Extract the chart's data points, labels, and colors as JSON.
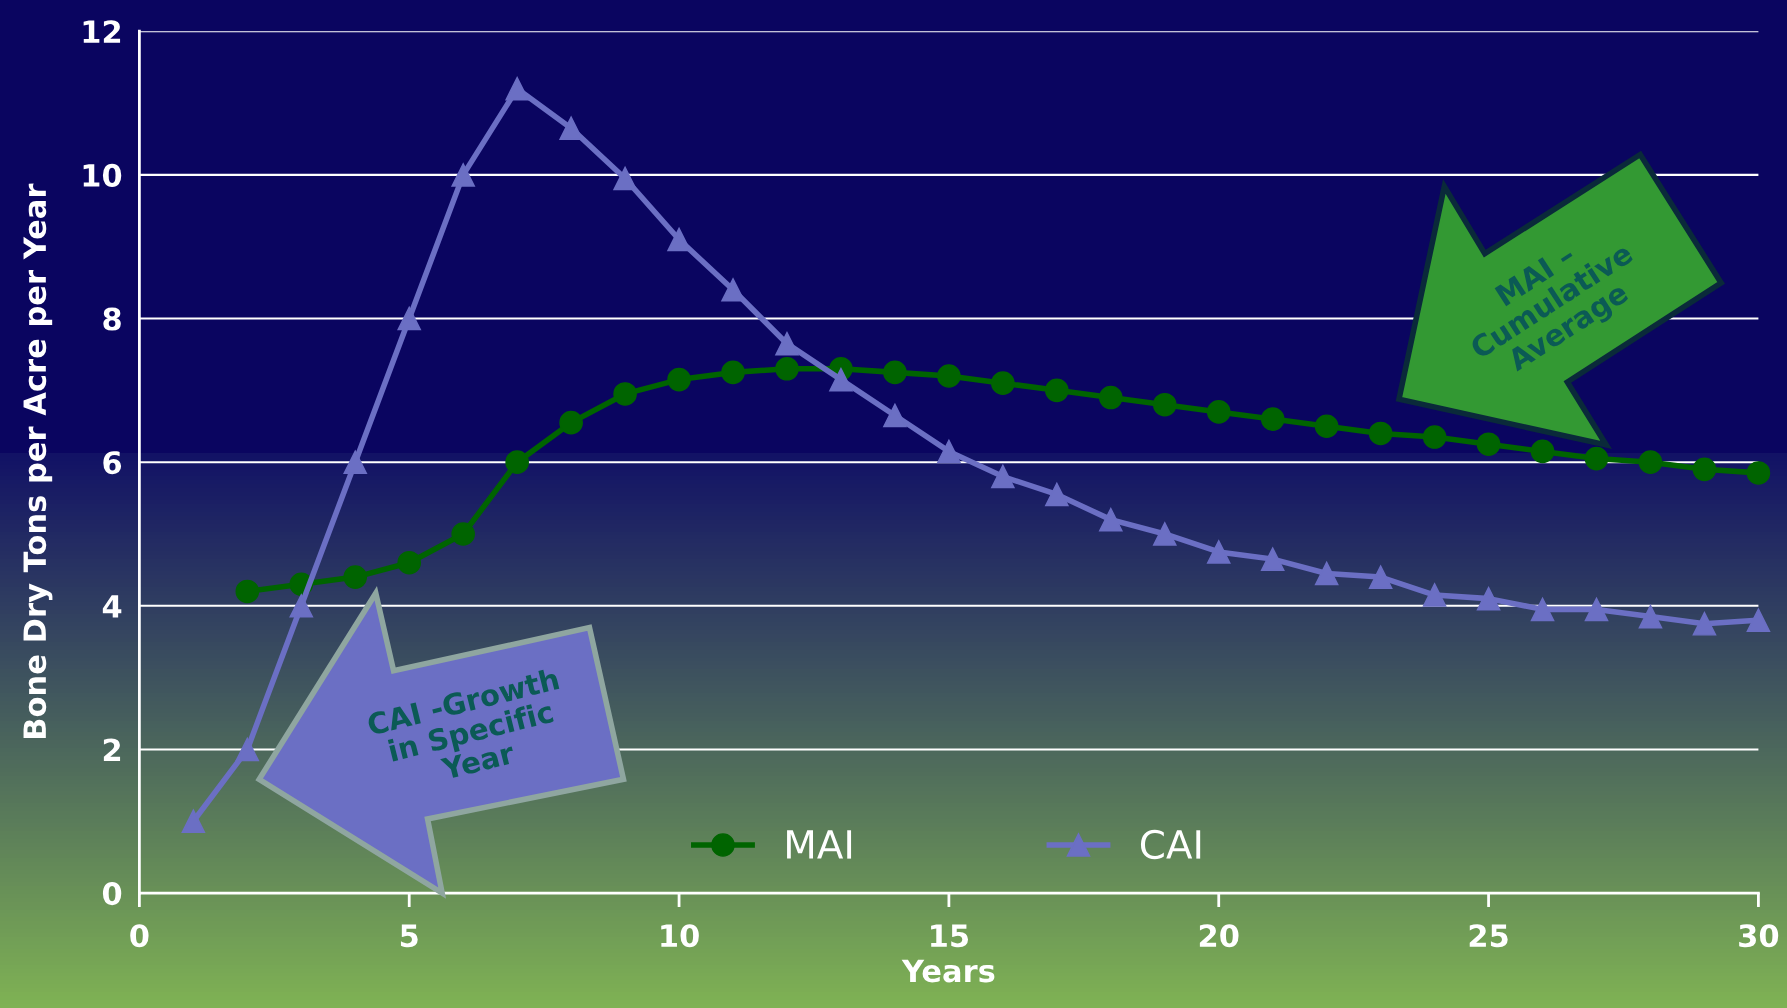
{
  "chart_data": {
    "type": "line",
    "xlabel": "Years",
    "ylabel": "Bone Dry Tons per Acre per Year",
    "xlim": [
      0,
      30
    ],
    "xticks": [
      0,
      5,
      10,
      15,
      20,
      25,
      30
    ],
    "ylim": [
      0,
      12
    ],
    "yticks": [
      0,
      2,
      4,
      6,
      8,
      10,
      12
    ],
    "grid": "y",
    "legend": "bottom",
    "line_style": "solid",
    "series": [
      {
        "name": "MAI",
        "color": "#006400",
        "marker": "circle",
        "x": [
          2,
          3,
          4,
          5,
          6,
          7,
          8,
          9,
          10,
          11,
          12,
          13,
          14,
          15,
          16,
          17,
          18,
          19,
          20,
          21,
          22,
          23,
          24,
          25,
          26,
          27,
          28,
          29,
          30
        ],
        "values": [
          4.2,
          4.3,
          4.4,
          4.6,
          5.0,
          6.0,
          6.55,
          6.95,
          7.15,
          7.25,
          7.3,
          7.3,
          7.25,
          7.2,
          7.1,
          7.0,
          6.9,
          6.8,
          6.7,
          6.6,
          6.5,
          6.4,
          6.35,
          6.25,
          6.15,
          6.05,
          6.0,
          5.9,
          5.85
        ]
      },
      {
        "name": "CAI",
        "color": "#6b6fc4",
        "marker": "triangle",
        "x": [
          1,
          2,
          3,
          4,
          5,
          6,
          7,
          8,
          9,
          10,
          11,
          12,
          13,
          14,
          15,
          16,
          17,
          18,
          19,
          20,
          21,
          22,
          23,
          24,
          25,
          26,
          27,
          28,
          29,
          30
        ],
        "values": [
          1.0,
          2.0,
          4.0,
          6.0,
          8.0,
          10.0,
          11.2,
          10.65,
          9.95,
          9.1,
          8.4,
          7.65,
          7.15,
          6.65,
          6.15,
          5.8,
          5.55,
          5.2,
          5.0,
          4.75,
          4.65,
          4.45,
          4.4,
          4.15,
          4.1,
          3.95,
          3.95,
          3.85,
          3.75,
          3.8
        ]
      }
    ],
    "annotations": [
      "CAI -Growth\nin Specific\nYear",
      "MAI –\nCumulative\nAverage"
    ]
  }
}
